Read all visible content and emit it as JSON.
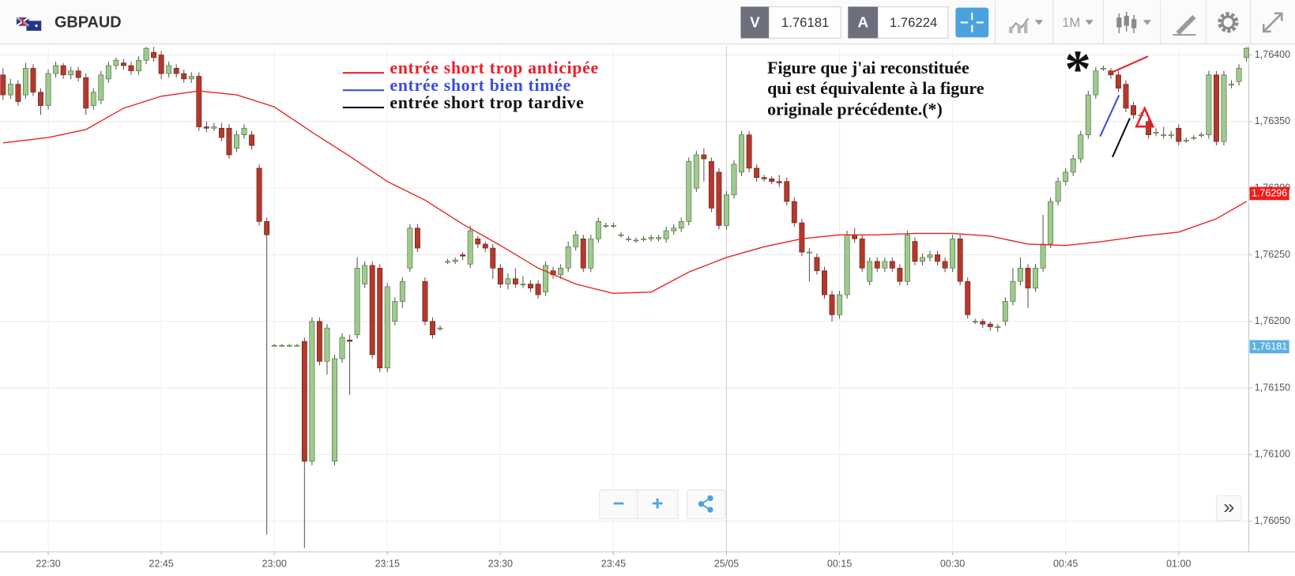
{
  "header": {
    "symbol": "GBPAUD",
    "sell_label": "V",
    "sell_price": "1.76181",
    "buy_label": "A",
    "buy_price": "1.76224",
    "timeframe": "1M"
  },
  "controls": {
    "zoom_out": "−",
    "zoom_in": "+",
    "scroll": "»"
  },
  "chart_data": {
    "type": "candlestick",
    "up_color": "#9fca8e",
    "down_color": "#b3392c",
    "xlim": [
      -6.4,
      159.3
    ],
    "xticks": [
      {
        "value": 0,
        "label": "22:30"
      },
      {
        "value": 15,
        "label": "22:45"
      },
      {
        "value": 30,
        "label": "23:00"
      },
      {
        "value": 45,
        "label": "23:15"
      },
      {
        "value": 60,
        "label": "23:30"
      },
      {
        "value": 75,
        "label": "23:45"
      },
      {
        "value": 90,
        "label": "25/05"
      },
      {
        "value": 105,
        "label": "00:15"
      },
      {
        "value": 120,
        "label": "00:30"
      },
      {
        "value": 135,
        "label": "00:45"
      },
      {
        "value": 150,
        "label": "01:00"
      }
    ],
    "ylim": [
      1.76027,
      1.76407
    ],
    "yticks": [
      {
        "value": 1.7605,
        "label": "1,76050"
      },
      {
        "value": 1.761,
        "label": "1,76100"
      },
      {
        "value": 1.7615,
        "label": "1,76150"
      },
      {
        "value": 1.762,
        "label": "1,76200"
      },
      {
        "value": 1.7625,
        "label": "1,76250"
      },
      {
        "value": 1.763,
        "label": "1,76300"
      },
      {
        "value": 1.7635,
        "label": "1,76350"
      },
      {
        "value": 1.764,
        "label": "1,76400"
      }
    ],
    "grid": true,
    "x": [
      -6,
      -5,
      -4,
      -3,
      -2,
      -1,
      0,
      1,
      2,
      3,
      4,
      5,
      6,
      7,
      8,
      9,
      10,
      11,
      12,
      13,
      14,
      15,
      16,
      17,
      18,
      19,
      20,
      21,
      22,
      23,
      24,
      25,
      26,
      27,
      28,
      29,
      30,
      31,
      32,
      33,
      34,
      35,
      36,
      37,
      38,
      39,
      40,
      41,
      42,
      43,
      44,
      45,
      46,
      47,
      48,
      49,
      50,
      51,
      52,
      53,
      54,
      55,
      56,
      57,
      58,
      59,
      60,
      61,
      62,
      63,
      64,
      65,
      66,
      67,
      68,
      69,
      70,
      71,
      72,
      73,
      74,
      75,
      76,
      77,
      78,
      79,
      80,
      81,
      82,
      83,
      84,
      85,
      86,
      87,
      88,
      89,
      90,
      91,
      92,
      93,
      94,
      95,
      96,
      97,
      98,
      99,
      100,
      101,
      102,
      103,
      104,
      105,
      106,
      107,
      108,
      109,
      110,
      111,
      112,
      113,
      114,
      115,
      116,
      117,
      118,
      119,
      120,
      121,
      122,
      123,
      124,
      125,
      126,
      127,
      128,
      129,
      130,
      131,
      132,
      133,
      134,
      135,
      136,
      137,
      138,
      139,
      140,
      141,
      142,
      143,
      144,
      145,
      146,
      147,
      148,
      149,
      150,
      151,
      152,
      153,
      154,
      155,
      156,
      157,
      158,
      159
    ],
    "ohlc": [
      [
        1.76385,
        1.7639,
        1.76366,
        1.7637
      ],
      [
        1.7637,
        1.76382,
        1.76367,
        1.76378
      ],
      [
        1.76378,
        1.76381,
        1.76362,
        1.76365
      ],
      [
        1.7637,
        1.76394,
        1.76367,
        1.7639
      ],
      [
        1.7639,
        1.76393,
        1.76369,
        1.76372
      ],
      [
        1.76372,
        1.76375,
        1.76355,
        1.76362
      ],
      [
        1.76362,
        1.76389,
        1.76359,
        1.76386
      ],
      [
        1.76386,
        1.76395,
        1.76383,
        1.76392
      ],
      [
        1.76392,
        1.76394,
        1.76382,
        1.76385
      ],
      [
        1.76385,
        1.76391,
        1.76382,
        1.76388
      ],
      [
        1.76388,
        1.76391,
        1.7638,
        1.76383
      ],
      [
        1.76383,
        1.76386,
        1.76355,
        1.7636
      ],
      [
        1.76362,
        1.76375,
        1.76359,
        1.76372
      ],
      [
        1.76366,
        1.76388,
        1.76363,
        1.76385
      ],
      [
        1.76382,
        1.76395,
        1.76379,
        1.76392
      ],
      [
        1.76392,
        1.76398,
        1.76389,
        1.76396
      ],
      [
        1.76394,
        1.76397,
        1.76389,
        1.76392
      ],
      [
        1.76392,
        1.76395,
        1.76385,
        1.76388
      ],
      [
        1.76388,
        1.76399,
        1.76385,
        1.76396
      ],
      [
        1.76396,
        1.76406,
        1.76393,
        1.76405
      ],
      [
        1.76402,
        1.76406,
        1.76395,
        1.76398
      ],
      [
        1.764,
        1.76403,
        1.76382,
        1.76386
      ],
      [
        1.76386,
        1.76395,
        1.76383,
        1.76392
      ],
      [
        1.7639,
        1.76393,
        1.76383,
        1.76386
      ],
      [
        1.76386,
        1.76389,
        1.76379,
        1.76382
      ],
      [
        1.76382,
        1.76387,
        1.76379,
        1.76384
      ],
      [
        1.76384,
        1.76387,
        1.76343,
        1.76346
      ],
      [
        1.76346,
        1.7635,
        1.76342,
        1.76345
      ],
      [
        1.76345,
        1.76349,
        1.76343,
        1.76346
      ],
      [
        1.76345,
        1.76349,
        1.76335,
        1.76338
      ],
      [
        1.76345,
        1.76348,
        1.76322,
        1.76325
      ],
      [
        1.7633,
        1.76343,
        1.76327,
        1.7634
      ],
      [
        1.7634,
        1.76348,
        1.76337,
        1.76345
      ],
      [
        1.7634,
        1.76343,
        1.76329,
        1.76332
      ],
      [
        1.76315,
        1.76318,
        1.76272,
        1.76275
      ],
      [
        1.76275,
        1.76278,
        1.7604,
        1.76265
      ],
      [
        1.76182,
        1.76183,
        1.76181,
        1.76182
      ],
      [
        1.76182,
        1.76183,
        1.76181,
        1.76182
      ],
      [
        1.76182,
        1.76183,
        1.76181,
        1.76182
      ],
      [
        1.76182,
        1.76183,
        1.76181,
        1.76182
      ],
      [
        1.76185,
        1.76188,
        1.7603,
        1.76095
      ],
      [
        1.76095,
        1.76203,
        1.76092,
        1.762
      ],
      [
        1.762,
        1.76203,
        1.76167,
        1.7617
      ],
      [
        1.7617,
        1.76198,
        1.7616,
        1.76195
      ],
      [
        1.76095,
        1.76175,
        1.76092,
        1.76172
      ],
      [
        1.76172,
        1.76191,
        1.76169,
        1.76188
      ],
      [
        1.76186,
        1.7619,
        1.76145,
        1.76185
      ],
      [
        1.7619,
        1.76248,
        1.76187,
        1.7624
      ],
      [
        1.76228,
        1.76245,
        1.76225,
        1.76242
      ],
      [
        1.76242,
        1.76245,
        1.76172,
        1.76175
      ],
      [
        1.7624,
        1.76243,
        1.76162,
        1.76165
      ],
      [
        1.76165,
        1.76229,
        1.76162,
        1.76226
      ],
      [
        1.762,
        1.76218,
        1.76197,
        1.76215
      ],
      [
        1.76215,
        1.76233,
        1.7621,
        1.7623
      ],
      [
        1.7624,
        1.76273,
        1.76237,
        1.7627
      ],
      [
        1.7627,
        1.76273,
        1.76252,
        1.76255
      ],
      [
        1.7623,
        1.76233,
        1.76197,
        1.762
      ],
      [
        1.762,
        1.76203,
        1.76187,
        1.7619
      ],
      [
        1.76195,
        1.76197,
        1.76193,
        1.76195
      ],
      [
        1.76245,
        1.76247,
        1.76243,
        1.76245
      ],
      [
        1.76245,
        1.76248,
        1.76243,
        1.76246
      ],
      [
        1.7625,
        1.76252,
        1.76246,
        1.76249
      ],
      [
        1.76243,
        1.76272,
        1.7624,
        1.76268
      ],
      [
        1.76262,
        1.76264,
        1.76255,
        1.76258
      ],
      [
        1.76258,
        1.7626,
        1.76252,
        1.76255
      ],
      [
        1.76255,
        1.76258,
        1.76232,
        1.7624
      ],
      [
        1.7624,
        1.76243,
        1.76225,
        1.76228
      ],
      [
        1.76228,
        1.76236,
        1.76224,
        1.76232
      ],
      [
        1.76232,
        1.7624,
        1.76225,
        1.76228
      ],
      [
        1.76228,
        1.76234,
        1.76225,
        1.76228
      ],
      [
        1.76228,
        1.76231,
        1.76222,
        1.76225
      ],
      [
        1.76228,
        1.76231,
        1.76217,
        1.7622
      ],
      [
        1.76222,
        1.76245,
        1.76219,
        1.76242
      ],
      [
        1.76238,
        1.76241,
        1.76232,
        1.76235
      ],
      [
        1.76235,
        1.76243,
        1.76232,
        1.7624
      ],
      [
        1.7624,
        1.7626,
        1.76237,
        1.76256
      ],
      [
        1.76256,
        1.76268,
        1.76253,
        1.76265
      ],
      [
        1.76262,
        1.76265,
        1.76237,
        1.7624
      ],
      [
        1.7624,
        1.76265,
        1.76237,
        1.76262
      ],
      [
        1.76262,
        1.76278,
        1.76259,
        1.76275
      ],
      [
        1.76272,
        1.76274,
        1.7627,
        1.76272
      ],
      [
        1.76272,
        1.76274,
        1.7627,
        1.76272
      ],
      [
        1.76265,
        1.76267,
        1.76263,
        1.76265
      ],
      [
        1.76262,
        1.76264,
        1.7626,
        1.76262
      ],
      [
        1.76261,
        1.76263,
        1.76259,
        1.76261
      ],
      [
        1.76262,
        1.76264,
        1.7626,
        1.76262
      ],
      [
        1.76262,
        1.76265,
        1.7626,
        1.76263
      ],
      [
        1.76262,
        1.76265,
        1.7626,
        1.76263
      ],
      [
        1.76262,
        1.76271,
        1.76259,
        1.76268
      ],
      [
        1.76268,
        1.76273,
        1.76265,
        1.7627
      ],
      [
        1.7627,
        1.76278,
        1.76267,
        1.76275
      ],
      [
        1.76275,
        1.76323,
        1.76272,
        1.7632
      ],
      [
        1.763,
        1.76328,
        1.76297,
        1.76325
      ],
      [
        1.76325,
        1.7633,
        1.76305,
        1.76322
      ],
      [
        1.7632,
        1.76323,
        1.76282,
        1.76285
      ],
      [
        1.76312,
        1.76315,
        1.76269,
        1.76272
      ],
      [
        1.76272,
        1.76298,
        1.76269,
        1.76295
      ],
      [
        1.76295,
        1.76321,
        1.76292,
        1.76318
      ],
      [
        1.76312,
        1.76343,
        1.76309,
        1.7634
      ],
      [
        1.7634,
        1.76343,
        1.76312,
        1.76315
      ],
      [
        1.76315,
        1.76318,
        1.76305,
        1.76308
      ],
      [
        1.76308,
        1.7631,
        1.76305,
        1.76307
      ],
      [
        1.76307,
        1.76309,
        1.76303,
        1.76305
      ],
      [
        1.76305,
        1.7631,
        1.76301,
        1.76304
      ],
      [
        1.76305,
        1.76308,
        1.76287,
        1.7629
      ],
      [
        1.7629,
        1.76293,
        1.76271,
        1.76274
      ],
      [
        1.76274,
        1.76277,
        1.76249,
        1.76252
      ],
      [
        1.76252,
        1.76255,
        1.7623,
        1.76252
      ],
      [
        1.76248,
        1.76251,
        1.76235,
        1.76238
      ],
      [
        1.76238,
        1.76241,
        1.76217,
        1.7622
      ],
      [
        1.7622,
        1.76223,
        1.762,
        1.76205
      ],
      [
        1.76205,
        1.76223,
        1.76202,
        1.7622
      ],
      [
        1.7622,
        1.76268,
        1.76217,
        1.76265
      ],
      [
        1.76265,
        1.7627,
        1.76259,
        1.76262
      ],
      [
        1.76262,
        1.76265,
        1.76237,
        1.7624
      ],
      [
        1.7623,
        1.76248,
        1.76227,
        1.76245
      ],
      [
        1.76245,
        1.76248,
        1.76237,
        1.7624
      ],
      [
        1.7624,
        1.76248,
        1.76237,
        1.76245
      ],
      [
        1.76245,
        1.76248,
        1.76237,
        1.7624
      ],
      [
        1.7624,
        1.76243,
        1.76227,
        1.7623
      ],
      [
        1.7623,
        1.76268,
        1.76227,
        1.76265
      ],
      [
        1.7626,
        1.76263,
        1.76242,
        1.76245
      ],
      [
        1.76245,
        1.76251,
        1.76242,
        1.76248
      ],
      [
        1.76248,
        1.76253,
        1.76245,
        1.7625
      ],
      [
        1.7625,
        1.76253,
        1.76242,
        1.76245
      ],
      [
        1.76245,
        1.76248,
        1.76237,
        1.7624
      ],
      [
        1.7624,
        1.76265,
        1.76237,
        1.76262
      ],
      [
        1.76262,
        1.76265,
        1.76227,
        1.7623
      ],
      [
        1.7623,
        1.76233,
        1.76202,
        1.76205
      ],
      [
        1.762,
        1.76202,
        1.76198,
        1.762
      ],
      [
        1.762,
        1.76202,
        1.76195,
        1.76198
      ],
      [
        1.76198,
        1.762,
        1.76193,
        1.76196
      ],
      [
        1.76196,
        1.76198,
        1.76192,
        1.76196
      ],
      [
        1.762,
        1.76218,
        1.76197,
        1.76215
      ],
      [
        1.76215,
        1.7624,
        1.76212,
        1.7623
      ],
      [
        1.7623,
        1.76248,
        1.76227,
        1.7624
      ],
      [
        1.7624,
        1.76243,
        1.7621,
        1.76225
      ],
      [
        1.76225,
        1.76243,
        1.76222,
        1.7624
      ],
      [
        1.7624,
        1.7628,
        1.76237,
        1.76258
      ],
      [
        1.76258,
        1.76293,
        1.76255,
        1.7629
      ],
      [
        1.7629,
        1.76308,
        1.76287,
        1.76305
      ],
      [
        1.76305,
        1.76315,
        1.76302,
        1.76312
      ],
      [
        1.76312,
        1.76325,
        1.76309,
        1.76322
      ],
      [
        1.76322,
        1.76343,
        1.76319,
        1.7634
      ],
      [
        1.7634,
        1.76373,
        1.76337,
        1.7637
      ],
      [
        1.7637,
        1.76391,
        1.76367,
        1.76388
      ],
      [
        1.7639,
        1.76392,
        1.76388,
        1.7639
      ],
      [
        1.76388,
        1.7639,
        1.76382,
        1.76385
      ],
      [
        1.76385,
        1.76388,
        1.76372,
        1.76375
      ],
      [
        1.76378,
        1.76381,
        1.76357,
        1.7636
      ],
      [
        1.76362,
        1.76365,
        1.76352,
        1.76355
      ],
      [
        1.76355,
        1.76357,
        1.76353,
        1.76355
      ],
      [
        1.7635,
        1.76353,
        1.76337,
        1.7634
      ],
      [
        1.76342,
        1.76345,
        1.76339,
        1.76342
      ],
      [
        1.7634,
        1.76346,
        1.76337,
        1.7634
      ],
      [
        1.7634,
        1.76343,
        1.76337,
        1.7634
      ],
      [
        1.76345,
        1.76348,
        1.76332,
        1.76335
      ],
      [
        1.76336,
        1.76338,
        1.76334,
        1.76336
      ],
      [
        1.76338,
        1.7634,
        1.76336,
        1.76338
      ],
      [
        1.7634,
        1.76342,
        1.76338,
        1.7634
      ],
      [
        1.7634,
        1.76388,
        1.76337,
        1.76385
      ],
      [
        1.76385,
        1.76388,
        1.76332,
        1.76335
      ],
      [
        1.76335,
        1.76388,
        1.76332,
        1.76385
      ],
      [
        1.76378,
        1.76381,
        1.76375,
        1.76378
      ],
      [
        1.7638,
        1.76393,
        1.76377,
        1.7639
      ],
      [
        1.76398,
        1.76406,
        1.76395,
        1.76405
      ]
    ],
    "ma": {
      "color": "#e8231f",
      "x": [
        -6,
        0,
        5,
        10,
        15,
        20,
        25,
        30,
        35,
        40,
        45,
        50,
        55,
        60,
        65,
        70,
        75,
        80,
        85,
        90,
        95,
        100,
        105,
        110,
        115,
        120,
        125,
        130,
        135,
        140,
        145,
        150,
        155,
        159
      ],
      "values": [
        1.76334,
        1.76338,
        1.76344,
        1.7636,
        1.76369,
        1.76373,
        1.7637,
        1.76361,
        1.76342,
        1.76324,
        1.76305,
        1.76291,
        1.76273,
        1.76257,
        1.7624,
        1.76228,
        1.76221,
        1.76222,
        1.76237,
        1.76248,
        1.76256,
        1.76262,
        1.76265,
        1.76265,
        1.76266,
        1.76266,
        1.76264,
        1.76258,
        1.76257,
        1.7626,
        1.76264,
        1.76267,
        1.76277,
        1.7629
      ]
    },
    "last_price": {
      "value": 1.76296,
      "label": "1.76296",
      "color": "#ee1c1c"
    },
    "bid_price": {
      "value": 1.76181,
      "label": "1,76181",
      "color": "#5bb0e2"
    },
    "annotations": {
      "legend": [
        {
          "text": "entrée short trop anticipée",
          "color": "#e8202a"
        },
        {
          "text": "entrée short bien timée",
          "color": "#3d4fd6"
        },
        {
          "text": "entrée short trop tardive",
          "color": "#111111"
        }
      ],
      "note": [
        "Figure que j'ai reconstituée",
        "qui est équivalente à la figure",
        "originale précédente.(*)"
      ],
      "star": "*"
    }
  }
}
